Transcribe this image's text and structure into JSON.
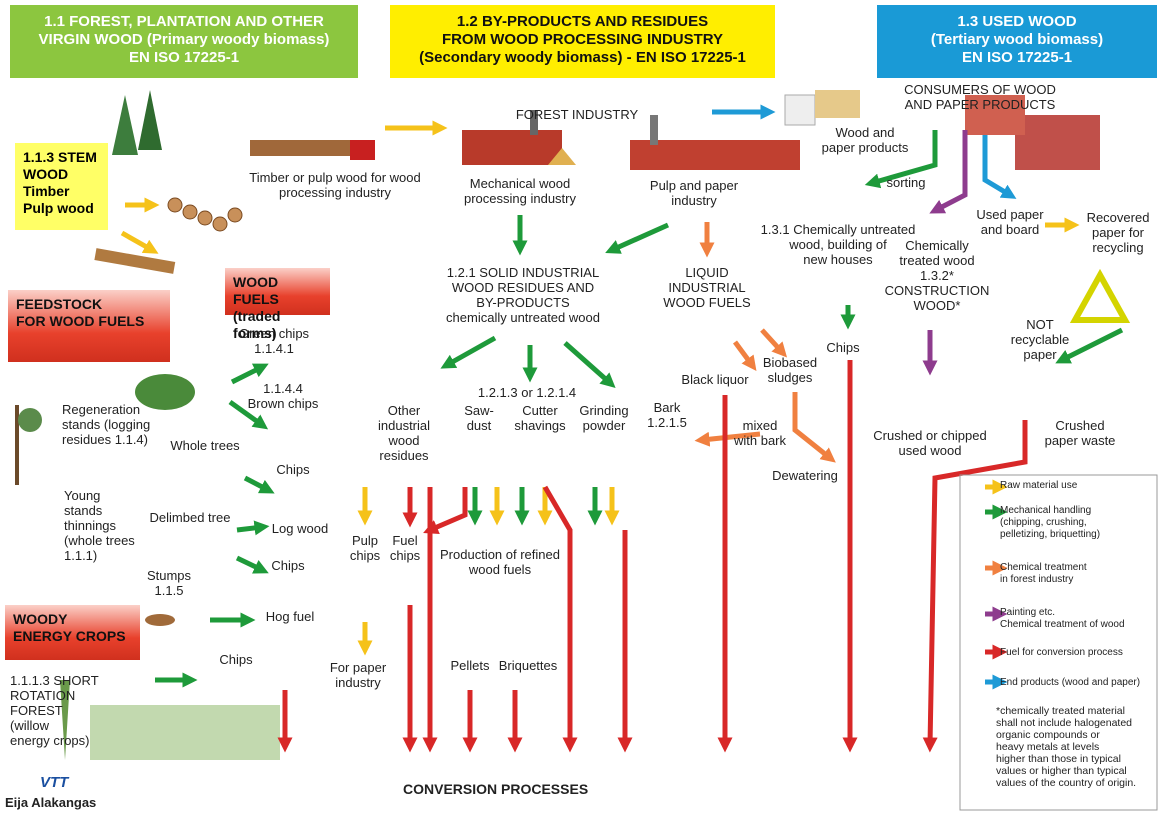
{
  "headers": [
    [
      "1.1 FOREST, PLANTATION AND OTHER",
      "VIRGIN WOOD (Primary woody biomass)",
      "EN ISO 17225-1"
    ],
    [
      "1.2 BY-PRODUCTS AND RESIDUES",
      "FROM WOOD PROCESSING INDUSTRY",
      "(Secondary woody biomass) - EN ISO 17225-1"
    ],
    [
      "1.3 USED WOOD",
      "(Tertiary wood biomass)",
      "EN ISO 17225-1"
    ]
  ],
  "boxes": [
    [
      "1.1.3 STEM",
      "WOOD",
      "Timber",
      "Pulp wood"
    ],
    [
      "FEEDSTOCK",
      "FOR WOOD FUELS"
    ],
    [
      "WOOD FUELS",
      "(traded forms)"
    ],
    [
      "WOODY",
      "ENERGY CROPS"
    ]
  ],
  "labels": [
    [
      "Timber or pulp wood for wood",
      "processing industry"
    ],
    [
      "FOREST INDUSTRY"
    ],
    [
      "Mechanical wood",
      "processing industry"
    ],
    [
      "Pulp and paper",
      "industry"
    ],
    [
      "Wood and",
      "paper products"
    ],
    [
      "CONSUMERS OF WOOD",
      "AND PAPER PRODUCTS"
    ],
    [
      "sorting"
    ],
    [
      "1.3.1 Chemically untreated",
      "wood,  building of",
      "new houses"
    ],
    [
      "Chemically",
      "treated wood",
      "1.3.2*",
      "CONSTRUCTION",
      "WOOD*"
    ],
    [
      "Used paper",
      "and board"
    ],
    [
      "Recovered",
      "paper for",
      "recycling"
    ],
    [
      "1.2.1 SOLID INDUSTRIAL",
      "WOOD RESIDUES AND",
      "BY-PRODUCTS",
      "chemically untreated wood"
    ],
    [
      "LIQUID",
      "INDUSTRIAL",
      "WOOD FUELS"
    ],
    [
      "Chips"
    ],
    [
      "NOT",
      "recyclable",
      "paper"
    ],
    [
      "Black liquor"
    ],
    [
      "Biobased",
      "sludges"
    ],
    [
      "Crushed or chipped",
      "used  wood"
    ],
    [
      "Crushed",
      "paper waste"
    ],
    [
      "Green chips",
      "1.1.4.1"
    ],
    [
      "1.1.4.4",
      "Brown chips"
    ],
    [
      "Regeneration",
      "stands (logging",
      "residues 1.1.4)"
    ],
    [
      "Whole trees"
    ],
    [
      "Chips"
    ],
    [
      "Young",
      "stands",
      "thinnings",
      "(whole  trees",
      "1.1.1)"
    ],
    [
      "Delimbed tree"
    ],
    [
      "Log wood"
    ],
    [
      "Chips"
    ],
    [
      "Stumps",
      "1.1.5"
    ],
    [
      "Hog fuel"
    ],
    [
      "Chips"
    ],
    [
      "1.1.1.3 SHORT",
      "ROTATION",
      "FOREST",
      "(willow",
      "energy crops)"
    ],
    [
      "Other",
      "industrial",
      "wood",
      "residues"
    ],
    [
      "Saw-",
      "dust"
    ],
    [
      "1.2.1.3 or 1.2.1.4"
    ],
    [
      "Cutter",
      "shavings"
    ],
    [
      "Grinding",
      "powder"
    ],
    [
      "Bark",
      "1.2.1.5"
    ],
    [
      "mixed",
      "with bark"
    ],
    [
      "Dewatering"
    ],
    [
      "Pulp",
      "chips"
    ],
    [
      "Fuel",
      "chips"
    ],
    [
      "Production of refined",
      "wood fuels"
    ],
    [
      "Pellets"
    ],
    [
      "Briquettes"
    ],
    [
      "For paper",
      "industry"
    ]
  ],
  "legend": {
    "items": [
      [
        "Raw material use"
      ],
      [
        "Mechanical handling",
        "(chipping, crushing,",
        "pelletizing, briquetting)"
      ],
      [
        "Chemical  treatment",
        "in forest industry"
      ],
      [
        "Painting etc.",
        "Chemical treatment of wood"
      ],
      [
        "Fuel for conversion process"
      ],
      [
        "End products (wood and paper)"
      ]
    ],
    "note": [
      "*chemically treated material",
      "shall not include halogenated",
      "organic compounds or",
      "heavy metals at levels",
      "higher than those in typical",
      "values or higher than typical",
      "values of the country of origin."
    ]
  },
  "footer": {
    "title": "CONVERSION PROCESSES",
    "logo": "VTT",
    "author": "Eija Alakangas"
  }
}
